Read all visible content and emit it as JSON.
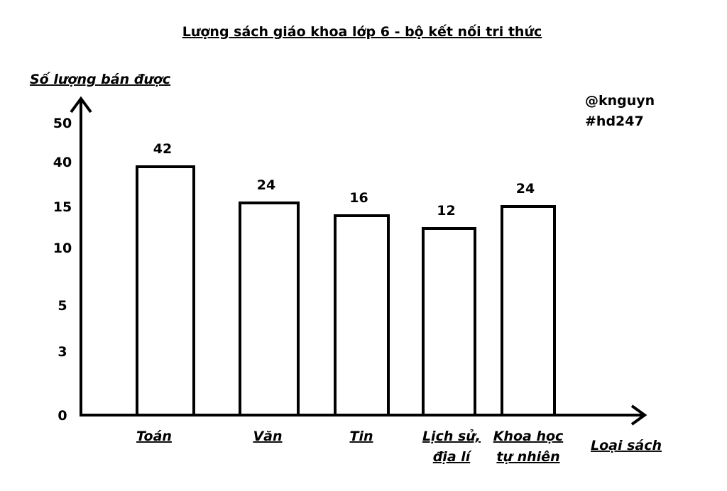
{
  "chart_data": {
    "type": "bar",
    "title": "Lượng sách giáo khoa lớp 6 - bộ kết nối tri thức",
    "ylabel": "Số lượng bán được",
    "xlabel": "Loại sách",
    "categories": [
      [
        "Toán"
      ],
      [
        "Văn"
      ],
      [
        "Tin"
      ],
      [
        "Lịch sử,",
        "địa lí"
      ],
      [
        "Khoa học",
        "tự nhiên"
      ]
    ],
    "values": [
      42,
      24,
      16,
      12,
      24
    ],
    "yticks": [
      "0",
      "3",
      "5",
      "10",
      "15",
      "40",
      "50"
    ],
    "grid": false,
    "legend": "none",
    "bar_fill": "#ffffff",
    "bar_stroke": "#000000"
  },
  "watermark": {
    "line1": "@knguyn",
    "line2": "#hd247"
  }
}
